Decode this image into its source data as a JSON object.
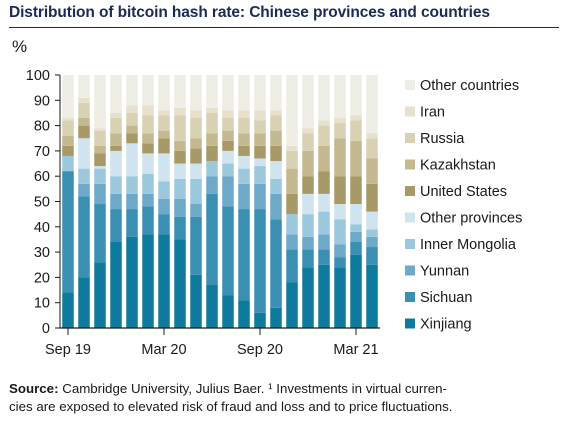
{
  "title": "Distribution of bitcoin hash rate: Chinese provinces and countries",
  "source": {
    "label": "Source:",
    "line1": " Cambridge University, Julius Baer. ¹ Investments in virtual curren-",
    "line2": "cies are exposed to elevated risk of fraud and loss and to price fluctuations."
  },
  "chart_data": {
    "type": "bar",
    "stacked": true,
    "y_unit": "%",
    "ylim": [
      0,
      100
    ],
    "yticks": [
      0,
      10,
      20,
      30,
      40,
      50,
      60,
      70,
      80,
      90,
      100
    ],
    "categories": [
      "Sep 19",
      "Oct 19",
      "Nov 19",
      "Dec 19",
      "Jan 20",
      "Feb 20",
      "Mar 20",
      "Apr 20",
      "May 20",
      "Jun 20",
      "Jul 20",
      "Aug 20",
      "Sep 20",
      "Oct 20",
      "Nov 20",
      "Dec 20",
      "Jan 21",
      "Feb 21",
      "Mar 21",
      "Apr 21"
    ],
    "xtick_labels": {
      "0": "Sep 19",
      "6": "Mar 20",
      "12": "Sep 20",
      "18": "Mar 21"
    },
    "legend_position": "right",
    "series": [
      {
        "name": "Xinjiang",
        "color": "#0e7a9c",
        "values": [
          14,
          20,
          26,
          34,
          36,
          37,
          37,
          35,
          21,
          17,
          13,
          11,
          6,
          8,
          18,
          24,
          25,
          24,
          29,
          25
        ]
      },
      {
        "name": "Sichuan",
        "color": "#3a8fb3",
        "values": [
          48,
          32,
          23,
          13,
          11,
          11,
          8,
          9,
          23,
          36,
          35,
          36,
          41,
          35,
          13,
          7,
          6,
          4,
          5,
          7
        ]
      },
      {
        "name": "Yunnan",
        "color": "#6ea9c8",
        "values": [
          0,
          5,
          8,
          6,
          6,
          5,
          6,
          7,
          5,
          7,
          12,
          10,
          10,
          10,
          6,
          5,
          6,
          5,
          4,
          4
        ]
      },
      {
        "name": "Inner Mongolia",
        "color": "#9cc8dd",
        "values": [
          6,
          6,
          6,
          7,
          7,
          8,
          7,
          8,
          10,
          6,
          5,
          6,
          7,
          6,
          8,
          9,
          9,
          10,
          3,
          3
        ]
      },
      {
        "name": "Other provinces",
        "color": "#cfe4ef",
        "values": [
          0,
          12,
          1,
          10,
          13,
          8,
          11,
          6,
          6,
          0,
          5,
          5,
          3,
          7,
          0,
          8,
          7,
          6,
          8,
          7
        ]
      },
      {
        "name": "United States",
        "color": "#a89a68",
        "values": [
          4,
          5,
          5,
          2,
          4,
          4,
          6,
          5,
          6,
          6,
          4,
          4,
          5,
          6,
          8,
          7,
          9,
          11,
          11,
          11
        ]
      },
      {
        "name": "Kazakhstan",
        "color": "#c3b88f",
        "values": [
          4,
          3,
          3,
          5,
          3,
          4,
          3,
          4,
          4,
          5,
          4,
          5,
          5,
          6,
          10,
          10,
          10,
          15,
          14,
          10
        ]
      },
      {
        "name": "Russia",
        "color": "#d9d1b4",
        "values": [
          6,
          6,
          6,
          6,
          5,
          7,
          6,
          10,
          8,
          8,
          5,
          6,
          5,
          6,
          7,
          7,
          8,
          6,
          8,
          8
        ]
      },
      {
        "name": "Iran",
        "color": "#e6e1cc",
        "values": [
          1,
          2,
          1,
          2,
          3,
          4,
          2,
          3,
          3,
          2,
          3,
          3,
          4,
          2,
          2,
          2,
          2,
          2,
          2,
          2
        ]
      },
      {
        "name": "Other countries",
        "color": "#eeede6",
        "values": [
          17,
          9,
          21,
          15,
          12,
          12,
          14,
          13,
          14,
          13,
          14,
          14,
          14,
          14,
          28,
          21,
          18,
          17,
          16,
          23
        ]
      }
    ]
  }
}
